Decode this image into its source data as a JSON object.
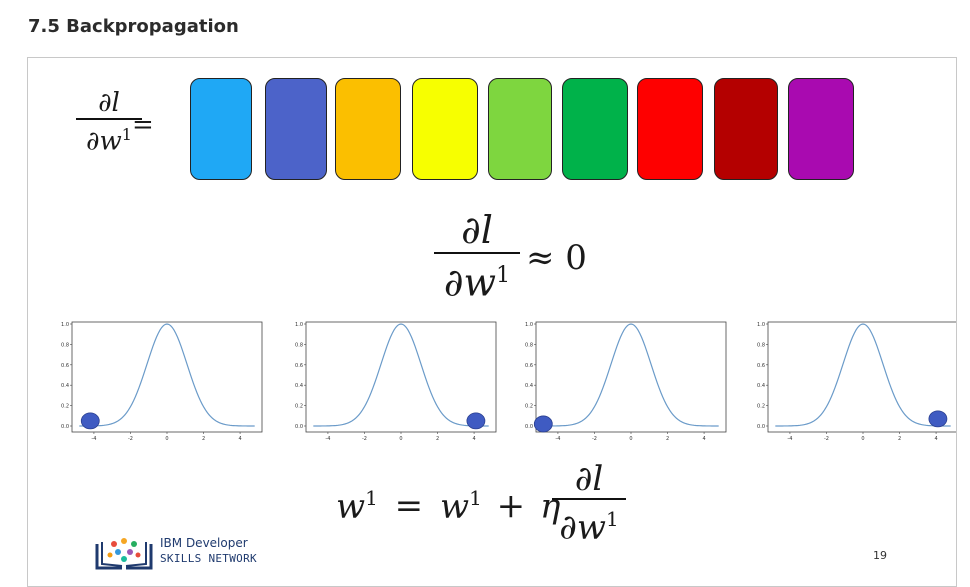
{
  "header": {
    "title": "7.5 Backpropagation"
  },
  "slide": {
    "top_formula": {
      "numerator": "∂l",
      "denominator_base": "∂w",
      "denominator_sup": "1",
      "equals": "="
    },
    "approx_formula": {
      "numerator": "∂l",
      "denominator_base": "∂w",
      "denominator_sup": "1",
      "approx": "≈ 0"
    },
    "update_formula": {
      "lhs_base": "w",
      "lhs_sup": "1",
      "equals": "=",
      "rhs_base": "w",
      "rhs_sup": "1",
      "plus": "+",
      "eta": "η",
      "numerator": "∂l",
      "denominator_base": "∂w",
      "denominator_sup": "1"
    },
    "color_boxes": [
      "#1fa8f5",
      "#4c63c9",
      "#fbbf00",
      "#f7ff00",
      "#7ed63f",
      "#00b24a",
      "#fe0000",
      "#b40000",
      "#a90ab0"
    ],
    "plots": [
      {
        "ticks_y": [
          "1.0",
          "0.8",
          "0.6",
          "0.4",
          "0.2",
          "0.0"
        ],
        "ticks_x": [
          "-4",
          "-2",
          "0",
          "2",
          "4"
        ],
        "marker_x": -4.2,
        "marker_y": 0.05
      },
      {
        "ticks_y": [
          "1.0",
          "0.8",
          "0.6",
          "0.4",
          "0.2",
          "0.0"
        ],
        "ticks_x": [
          "-4",
          "-2",
          "0",
          "2",
          "4"
        ],
        "marker_x": 4.1,
        "marker_y": 0.05
      },
      {
        "ticks_y": [
          "1.0",
          "0.8",
          "0.6",
          "0.4",
          "0.2",
          "0.0"
        ],
        "ticks_x": [
          "-4",
          "-2",
          "0",
          "2",
          "4"
        ],
        "marker_x": -4.8,
        "marker_y": 0.02
      },
      {
        "ticks_y": [
          "1.0",
          "0.8",
          "0.6",
          "0.4",
          "0.2",
          "0.0"
        ],
        "ticks_x": [
          "-4",
          "-2",
          "0",
          "2",
          "4"
        ],
        "marker_x": 4.1,
        "marker_y": 0.07
      }
    ],
    "logo": {
      "line1": "IBM Developer",
      "line2": "SKILLS NETWORK"
    },
    "page_number": "19"
  },
  "colors": {
    "curve": "#6b9bc9",
    "marker": "#3f5bc2",
    "marker_stroke": "#2a3f8f"
  }
}
